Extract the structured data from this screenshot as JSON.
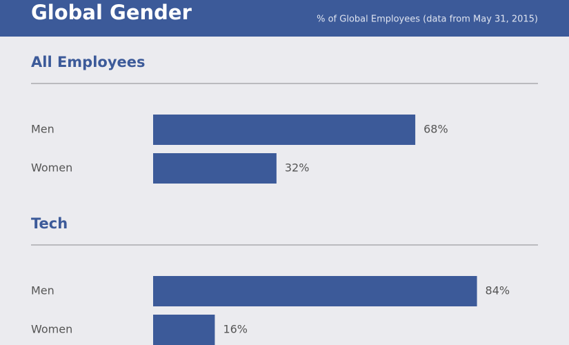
{
  "header": {
    "title": "Global Gender",
    "subtitle": "% of Global Employees (data from May 31, 2015)"
  },
  "chart_data": [
    {
      "type": "bar",
      "orientation": "horizontal",
      "title": "All Employees",
      "categories": [
        "Men",
        "Women"
      ],
      "values": [
        68,
        32
      ],
      "value_labels": [
        "68%",
        "32%"
      ],
      "color": "#3c5a99",
      "xlim": [
        0,
        100
      ]
    },
    {
      "type": "bar",
      "orientation": "horizontal",
      "title": "Tech",
      "categories": [
        "Men",
        "Women"
      ],
      "values": [
        84,
        16
      ],
      "value_labels": [
        "84%",
        "16%"
      ],
      "color": "#3c5a99",
      "xlim": [
        0,
        100
      ]
    }
  ]
}
